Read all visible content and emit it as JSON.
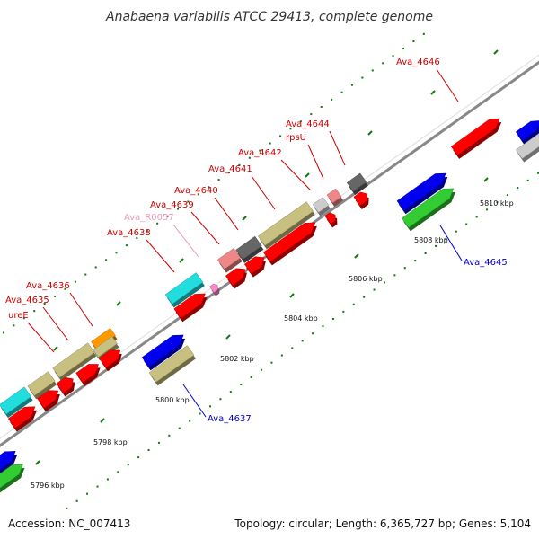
{
  "title": "Anabaena variabilis ATCC 29413, complete genome",
  "footer": {
    "accession": "Accession: NC_007413",
    "summary": "Topology: circular; Length: 6,365,727 bp; Genes: 5,104"
  },
  "ticks": [
    {
      "label": "5796 kbp"
    },
    {
      "label": "5798 kbp"
    },
    {
      "label": "5800 kbp"
    },
    {
      "label": "5802 kbp"
    },
    {
      "label": "5804 kbp"
    },
    {
      "label": "5806 kbp"
    },
    {
      "label": "5808 kbp"
    },
    {
      "label": "5810 kbp"
    }
  ],
  "gene_labels": [
    {
      "text": "Ava_4646",
      "color": "#cc0000"
    },
    {
      "text": "Ava_4644",
      "color": "#cc0000"
    },
    {
      "text": "rpsU",
      "color": "#cc0000"
    },
    {
      "text": "Ava_4642",
      "color": "#cc0000"
    },
    {
      "text": "Ava_4641",
      "color": "#cc0000"
    },
    {
      "text": "Ava_4640",
      "color": "#cc0000"
    },
    {
      "text": "Ava_4639",
      "color": "#cc0000"
    },
    {
      "text": "Ava_R0057",
      "color": "#ee99bb"
    },
    {
      "text": "Ava_4638",
      "color": "#cc0000"
    },
    {
      "text": "Ava_4636",
      "color": "#cc0000"
    },
    {
      "text": "Ava_4635",
      "color": "#cc0000"
    },
    {
      "text": "ureE",
      "color": "#cc0000"
    },
    {
      "text": "Ava_4645",
      "color": "#0000cc"
    },
    {
      "text": "Ava_4637",
      "color": "#0000cc"
    }
  ],
  "colors": {
    "cds_red": "#ff0000",
    "cds_blue": "#0000ee",
    "cds_green": "#33cc33",
    "cds_khaki": "#c8c080",
    "cds_cyan": "#22dddd",
    "cds_gray": "#666666",
    "cds_lightgray": "#cccccc",
    "cds_pink": "#ee8888",
    "cds_orange": "#ff9900",
    "rna_pink": "#ff88cc",
    "backbone": "#888888",
    "tick": "#117711"
  }
}
